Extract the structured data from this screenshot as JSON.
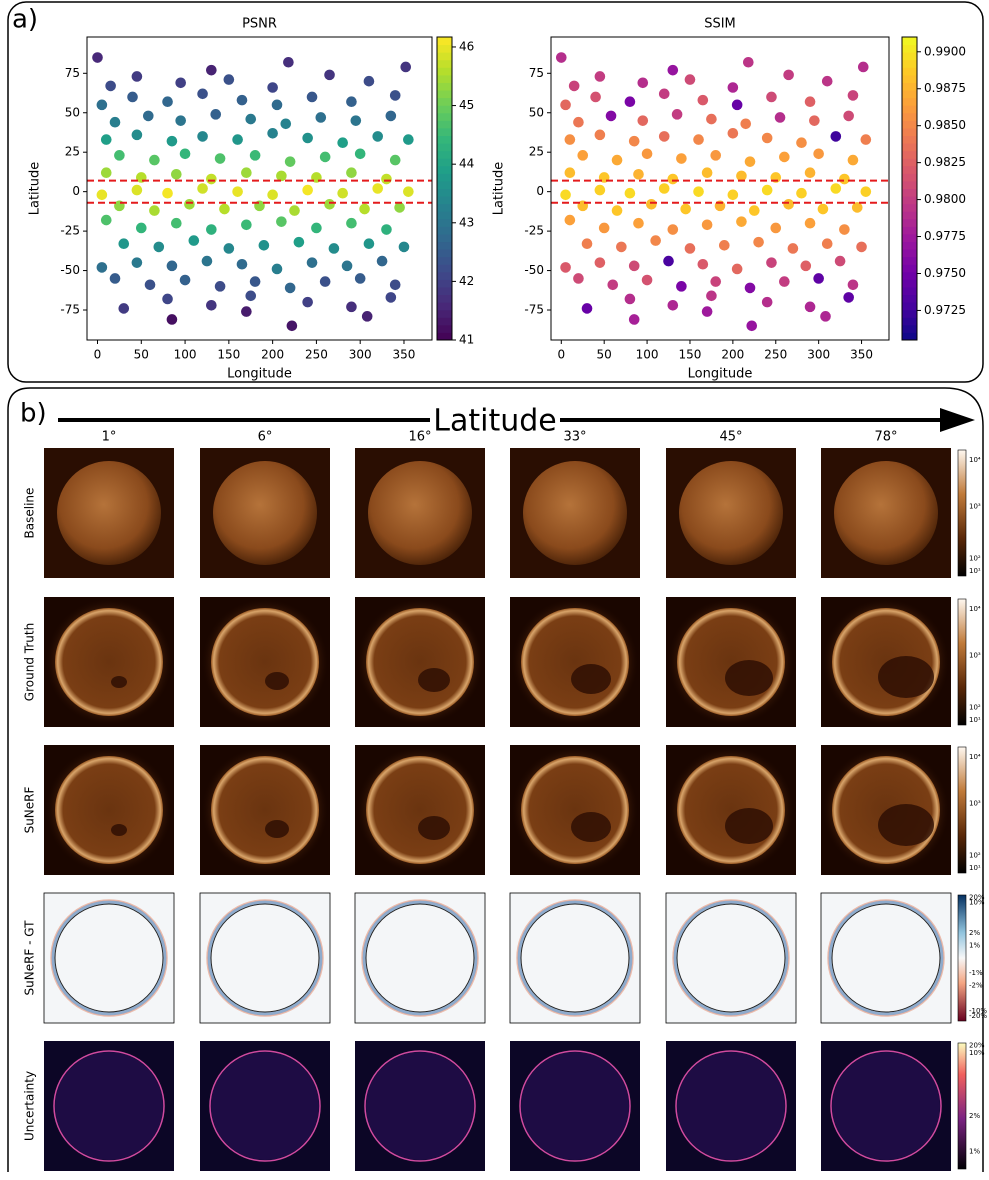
{
  "chart_data": [
    {
      "type": "scatter",
      "title": "PSNR",
      "x_label": "Longitude",
      "y_label": "Latitude",
      "x": [
        0,
        130,
        218,
        352,
        15,
        45,
        95,
        150,
        200,
        265,
        310,
        5,
        40,
        80,
        120,
        165,
        205,
        245,
        290,
        340,
        20,
        58,
        95,
        135,
        175,
        215,
        255,
        295,
        335,
        10,
        45,
        85,
        120,
        160,
        200,
        240,
        280,
        320,
        355,
        25,
        65,
        100,
        140,
        180,
        220,
        260,
        300,
        340,
        10,
        50,
        90,
        130,
        170,
        210,
        250,
        290,
        330,
        5,
        45,
        80,
        120,
        160,
        200,
        240,
        280,
        320,
        355,
        25,
        65,
        105,
        145,
        185,
        225,
        265,
        305,
        345,
        10,
        50,
        90,
        130,
        170,
        210,
        250,
        290,
        330,
        30,
        70,
        110,
        150,
        190,
        230,
        270,
        310,
        350,
        5,
        45,
        85,
        125,
        165,
        205,
        245,
        285,
        325,
        20,
        60,
        100,
        140,
        180,
        220,
        260,
        300,
        340,
        30,
        80,
        130,
        175,
        240,
        290,
        335,
        85,
        170,
        222,
        308
      ],
      "y": [
        85,
        77,
        82,
        79,
        67,
        73,
        69,
        71,
        66,
        74,
        70,
        55,
        60,
        57,
        62,
        58,
        55,
        60,
        57,
        61,
        44,
        48,
        45,
        49,
        46,
        43,
        47,
        45,
        48,
        33,
        36,
        32,
        35,
        33,
        37,
        34,
        31,
        35,
        33,
        23,
        20,
        24,
        21,
        23,
        19,
        22,
        24,
        20,
        12,
        9,
        11,
        8,
        12,
        10,
        9,
        12,
        8,
        -2,
        1,
        -1,
        2,
        0,
        -2,
        1,
        -1,
        2,
        0,
        -9,
        -12,
        -8,
        -11,
        -9,
        -12,
        -8,
        -11,
        -10,
        -18,
        -23,
        -20,
        -24,
        -21,
        -19,
        -23,
        -20,
        -24,
        -33,
        -35,
        -31,
        -36,
        -34,
        -32,
        -36,
        -33,
        -35,
        -48,
        -45,
        -47,
        -44,
        -46,
        -49,
        -45,
        -47,
        -44,
        -55,
        -59,
        -56,
        -60,
        -57,
        -61,
        -57,
        -55,
        -59,
        -74,
        -68,
        -72,
        -66,
        -70,
        -73,
        -67,
        -81,
        -76,
        -85,
        -79
      ],
      "values": [
        41.6,
        41.5,
        41.7,
        41.8,
        42.2,
        41.9,
        42.0,
        42.3,
        42.1,
        41.8,
        42.2,
        42.9,
        42.5,
        42.7,
        42.3,
        42.6,
        42.8,
        42.4,
        42.6,
        42.3,
        43.2,
        42.8,
        43.0,
        42.6,
        43.1,
        43.3,
        42.9,
        43.0,
        42.7,
        43.9,
        43.5,
        43.8,
        43.4,
        43.7,
        43.3,
        43.6,
        43.9,
        43.5,
        43.8,
        44.6,
        44.8,
        44.4,
        44.7,
        44.5,
        44.9,
        44.6,
        44.4,
        44.8,
        45.4,
        45.6,
        45.3,
        45.7,
        45.4,
        45.5,
        45.6,
        45.3,
        45.7,
        46.0,
        45.9,
        46.1,
        45.8,
        46.0,
        45.9,
        46.1,
        45.8,
        46.0,
        45.9,
        45.3,
        45.5,
        45.4,
        45.6,
        45.3,
        45.5,
        45.4,
        45.6,
        45.3,
        44.7,
        44.4,
        44.6,
        44.3,
        44.5,
        44.8,
        44.4,
        44.6,
        44.3,
        43.7,
        43.5,
        43.8,
        43.4,
        43.6,
        43.9,
        43.5,
        43.7,
        43.4,
        42.9,
        43.1,
        42.7,
        43.0,
        42.8,
        43.2,
        42.9,
        43.0,
        42.7,
        42.5,
        42.3,
        42.6,
        42.2,
        42.4,
        42.7,
        42.3,
        42.5,
        42.2,
        41.9,
        42.1,
        41.8,
        42.2,
        42.0,
        41.7,
        42.1,
        41.2,
        41.4,
        41.3,
        41.5
      ],
      "colormap": "viridis",
      "clim": [
        41,
        46.17
      ],
      "cticks": [
        41,
        42,
        43,
        44,
        45,
        46
      ],
      "xlim": [
        -12,
        382
      ],
      "xticks": [
        0,
        50,
        100,
        150,
        200,
        250,
        300,
        350
      ],
      "ylim": [
        -94,
        98
      ],
      "yticks": [
        -75,
        -50,
        -25,
        0,
        25,
        50,
        75
      ],
      "reference_lines": {
        "values": [
          7,
          -7
        ],
        "color": "#e41a1c"
      }
    },
    {
      "type": "scatter",
      "title": "SSIM",
      "x_label": "Longitude",
      "y_label": "Latitude",
      "x": [
        0,
        130,
        218,
        352,
        15,
        45,
        95,
        150,
        200,
        265,
        310,
        5,
        40,
        80,
        120,
        165,
        205,
        245,
        290,
        340,
        20,
        58,
        95,
        135,
        175,
        215,
        255,
        295,
        335,
        10,
        45,
        85,
        120,
        160,
        200,
        240,
        280,
        320,
        355,
        25,
        65,
        100,
        140,
        180,
        220,
        260,
        300,
        340,
        10,
        50,
        90,
        130,
        170,
        210,
        250,
        290,
        330,
        5,
        45,
        80,
        120,
        160,
        200,
        240,
        280,
        320,
        355,
        25,
        65,
        105,
        145,
        185,
        225,
        265,
        305,
        345,
        10,
        50,
        90,
        130,
        170,
        210,
        250,
        290,
        330,
        30,
        70,
        110,
        150,
        190,
        230,
        270,
        310,
        350,
        5,
        45,
        85,
        125,
        165,
        205,
        245,
        285,
        325,
        20,
        60,
        100,
        140,
        180,
        220,
        260,
        300,
        340,
        30,
        80,
        130,
        175,
        240,
        290,
        335,
        85,
        170,
        222,
        308
      ],
      "y": [
        85,
        77,
        82,
        79,
        67,
        73,
        69,
        71,
        66,
        74,
        70,
        55,
        60,
        57,
        62,
        58,
        55,
        60,
        57,
        61,
        44,
        48,
        45,
        49,
        46,
        43,
        47,
        45,
        48,
        33,
        36,
        32,
        35,
        33,
        37,
        34,
        31,
        35,
        33,
        23,
        20,
        24,
        21,
        23,
        19,
        22,
        24,
        20,
        12,
        9,
        11,
        8,
        12,
        10,
        9,
        12,
        8,
        -2,
        1,
        -1,
        2,
        0,
        -2,
        1,
        -1,
        2,
        0,
        -9,
        -12,
        -8,
        -11,
        -9,
        -12,
        -8,
        -11,
        -10,
        -18,
        -23,
        -20,
        -24,
        -21,
        -19,
        -23,
        -20,
        -24,
        -33,
        -35,
        -31,
        -36,
        -34,
        -32,
        -36,
        -33,
        -35,
        -48,
        -45,
        -47,
        -44,
        -46,
        -49,
        -45,
        -47,
        -44,
        -55,
        -59,
        -56,
        -60,
        -57,
        -61,
        -57,
        -55,
        -59,
        -74,
        -68,
        -72,
        -66,
        -70,
        -73,
        -67,
        -81,
        -76,
        -85,
        -79
      ],
      "values": [
        0.979,
        0.977,
        0.9795,
        0.979,
        0.9805,
        0.98,
        0.979,
        0.981,
        0.9785,
        0.98,
        0.9795,
        0.983,
        0.9815,
        0.9755,
        0.98,
        0.982,
        0.9745,
        0.981,
        0.9825,
        0.9805,
        0.984,
        0.976,
        0.983,
        0.98,
        0.9835,
        0.9845,
        0.979,
        0.983,
        0.981,
        0.9855,
        0.9845,
        0.985,
        0.9835,
        0.985,
        0.984,
        0.985,
        0.9855,
        0.9725,
        0.9845,
        0.9865,
        0.987,
        0.986,
        0.9865,
        0.986,
        0.987,
        0.9865,
        0.986,
        0.987,
        0.988,
        0.9885,
        0.9875,
        0.9885,
        0.988,
        0.988,
        0.9885,
        0.9875,
        0.9885,
        0.9895,
        0.989,
        0.9895,
        0.989,
        0.9895,
        0.989,
        0.9895,
        0.989,
        0.9895,
        0.989,
        0.988,
        0.9885,
        0.988,
        0.9885,
        0.9875,
        0.9885,
        0.988,
        0.9885,
        0.988,
        0.9865,
        0.986,
        0.9865,
        0.9855,
        0.986,
        0.987,
        0.986,
        0.9865,
        0.9855,
        0.9845,
        0.984,
        0.985,
        0.9835,
        0.9845,
        0.985,
        0.984,
        0.9845,
        0.9835,
        0.982,
        0.9825,
        0.981,
        0.973,
        0.982,
        0.983,
        0.9805,
        0.9825,
        0.981,
        0.981,
        0.98,
        0.9815,
        0.9755,
        0.9805,
        0.976,
        0.98,
        0.974,
        0.9795,
        0.9745,
        0.979,
        0.9785,
        0.9795,
        0.979,
        0.9785,
        0.974,
        0.978,
        0.9775,
        0.977,
        0.9785
      ],
      "colormap": "plasma",
      "clim": [
        0.9705,
        0.991
      ],
      "cticks": [
        {
          "value": 0.9725,
          "label": "0.9725"
        },
        {
          "value": 0.975,
          "label": "0.9750"
        },
        {
          "value": 0.9775,
          "label": "0.9775"
        },
        {
          "value": 0.98,
          "label": "0.9800"
        },
        {
          "value": 0.9825,
          "label": "0.9825"
        },
        {
          "value": 0.985,
          "label": "0.9850"
        },
        {
          "value": 0.9875,
          "label": "0.9875"
        },
        {
          "value": 0.99,
          "label": "0.9900"
        }
      ],
      "xlim": [
        -12,
        382
      ],
      "xticks": [
        0,
        50,
        100,
        150,
        200,
        250,
        300,
        350
      ],
      "ylim": [
        -94,
        98
      ],
      "yticks": [
        -75,
        -50,
        -25,
        0,
        25,
        50,
        75
      ],
      "reference_lines": {
        "values": [
          7,
          -7
        ],
        "color": "#e41a1c"
      }
    }
  ],
  "panel_labels": [
    "a)",
    "b)"
  ],
  "panel_b": {
    "arrow_label": "Latitude",
    "columns": [
      "1°",
      "6°",
      "16°",
      "33°",
      "45°",
      "78°"
    ],
    "rows": [
      "Baseline",
      "Ground Truth",
      "SuNeRF",
      "SuNeRF - GT",
      "Uncertainty"
    ],
    "colorbar_labels": [
      [
        "10⁴",
        "10³",
        "10²",
        "10¹"
      ],
      [
        "10⁴",
        "10³",
        "10²",
        "10¹"
      ],
      [
        "10⁴",
        "10³",
        "10²",
        "10¹"
      ],
      [
        "20%",
        "10%",
        "2%",
        "1%",
        "-1%",
        "-2%",
        "-10%",
        "-20%"
      ],
      [
        "20%",
        "10%",
        "2%",
        "1%"
      ]
    ]
  }
}
